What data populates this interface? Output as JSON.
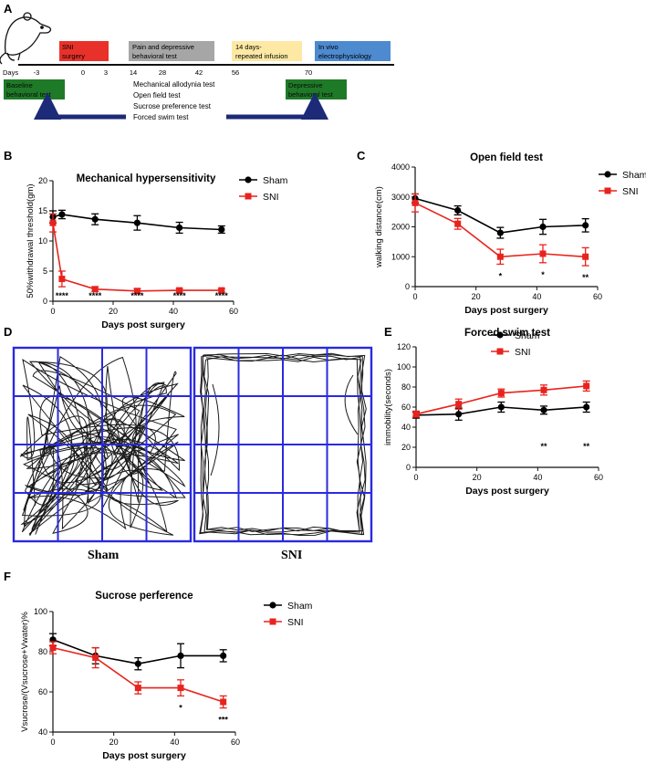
{
  "timeline": {
    "panel": "A",
    "days_label": "Days",
    "day_ticks": [
      {
        "label": "-3",
        "day": -3
      },
      {
        "label": "0",
        "day": 0
      },
      {
        "label": "3",
        "day": 3
      },
      {
        "label": "14",
        "day": 14
      },
      {
        "label": "28",
        "day": 28
      },
      {
        "label": "42",
        "day": 42
      },
      {
        "label": "56",
        "day": 56
      },
      {
        "label": "70",
        "day": 70
      }
    ],
    "boxes": [
      {
        "line1": "SNI",
        "line2": "surgery",
        "color": "#e8312a"
      },
      {
        "line1": "Pain and depressive",
        "line2": "behavioral test",
        "color": "#a6a6a6"
      },
      {
        "line1": "14 days-",
        "line2": "repeated infusion",
        "color": "#fde9a4"
      },
      {
        "line1": "In vivo",
        "line2": "electrophysiology",
        "color": "#4d8ad0"
      }
    ],
    "baseline": {
      "line1": "Baseline",
      "line2": "behavioral test",
      "color": "#1f7a28"
    },
    "depressive": {
      "line1": "Depressive",
      "line2": "behavioral test",
      "color": "#1f7a28"
    },
    "tests": [
      "Mechanical allodynia test",
      "Open field test",
      "Sucrose preference test",
      "Forced swim test"
    ]
  },
  "arena": {
    "panel": "D",
    "sham_label": "Sham",
    "sni_label": "SNI"
  },
  "chart_data": [
    {
      "panel": "B",
      "type": "line",
      "title": "Mechanical hypersensitivity",
      "xlabel": "Days post surgery",
      "ylabel": "50%withdrawal threshold(gm)",
      "xlim": [
        0,
        60
      ],
      "ylim": [
        0,
        20
      ],
      "xticks": [
        0,
        20,
        40,
        60
      ],
      "yticks": [
        0,
        5,
        10,
        15,
        20
      ],
      "legend_position": "top-right",
      "series": [
        {
          "name": "Sham",
          "color": "#000000",
          "x": [
            0,
            3,
            14,
            28,
            42,
            56
          ],
          "y": [
            14,
            14.4,
            13.6,
            13,
            12.2,
            11.9
          ],
          "err": [
            1,
            0.7,
            0.9,
            1.2,
            0.9,
            0.6
          ]
        },
        {
          "name": "SNI",
          "color": "#e8231d",
          "x": [
            0,
            3,
            14,
            28,
            42,
            56
          ],
          "y": [
            13,
            3.7,
            2,
            1.7,
            1.8,
            1.8
          ],
          "err": [
            1.5,
            1.3,
            0.4,
            0.4,
            0.3,
            0.3
          ]
        }
      ],
      "annotations": [
        {
          "x": 3,
          "text": "****"
        },
        {
          "x": 14,
          "text": "****"
        },
        {
          "x": 28,
          "text": "****"
        },
        {
          "x": 42,
          "text": "****"
        },
        {
          "x": 56,
          "text": "****"
        }
      ]
    },
    {
      "panel": "C",
      "type": "line",
      "title": "Open field test",
      "xlabel": "Days post surgery",
      "ylabel": "walking distance(cm)",
      "xlim": [
        0,
        60
      ],
      "ylim": [
        0,
        4000
      ],
      "xticks": [
        0,
        20,
        40,
        60
      ],
      "yticks": [
        0,
        1000,
        2000,
        3000,
        4000
      ],
      "legend_position": "top-right",
      "series": [
        {
          "name": "Sham",
          "color": "#000000",
          "x": [
            0,
            14,
            28,
            42,
            56
          ],
          "y": [
            2950,
            2550,
            1800,
            2000,
            2050
          ],
          "err": [
            150,
            150,
            180,
            250,
            220
          ]
        },
        {
          "name": "SNI",
          "color": "#e8231d",
          "x": [
            0,
            14,
            28,
            42,
            56
          ],
          "y": [
            2800,
            2100,
            1000,
            1100,
            1000
          ],
          "err": [
            300,
            180,
            250,
            300,
            300
          ]
        }
      ],
      "annotations": [
        {
          "x": 28,
          "text": "*"
        },
        {
          "x": 42,
          "text": "*"
        },
        {
          "x": 56,
          "text": "**"
        }
      ]
    },
    {
      "panel": "E",
      "type": "line",
      "title": "Forced swim test",
      "xlabel": "Days post surgery",
      "ylabel": "immobility(seconds)",
      "xlim": [
        0,
        60
      ],
      "ylim": [
        0,
        120
      ],
      "xticks": [
        0,
        20,
        40,
        60
      ],
      "yticks": [
        0,
        20,
        40,
        60,
        80,
        100,
        120
      ],
      "legend_position": "top-right",
      "series": [
        {
          "name": "Sham",
          "color": "#000000",
          "x": [
            0,
            14,
            28,
            42,
            56
          ],
          "y": [
            52,
            53,
            60,
            57,
            60
          ],
          "err": [
            3,
            6,
            5,
            4,
            5
          ]
        },
        {
          "name": "SNI",
          "color": "#e8231d",
          "x": [
            0,
            14,
            28,
            42,
            56
          ],
          "y": [
            53,
            63,
            74,
            77,
            81
          ],
          "err": [
            3,
            5,
            4,
            5,
            5
          ]
        }
      ],
      "annotations": [
        {
          "x": 42,
          "text": "**"
        },
        {
          "x": 56,
          "text": "**"
        }
      ]
    },
    {
      "panel": "F",
      "type": "line",
      "title": "Sucrose perference",
      "xlabel": "Days post surgery",
      "ylabel": "Vsucrose/(Vsucrose+Vwater)%",
      "xlim": [
        0,
        60
      ],
      "ylim": [
        40,
        100
      ],
      "xticks": [
        0,
        20,
        40,
        60
      ],
      "yticks": [
        40,
        60,
        80,
        100
      ],
      "legend_position": "top-right",
      "series": [
        {
          "name": "Sham",
          "color": "#000000",
          "x": [
            0,
            14,
            28,
            42,
            56
          ],
          "y": [
            86,
            78,
            74,
            78,
            78
          ],
          "err": [
            3,
            4,
            3,
            6,
            3
          ]
        },
        {
          "name": "SNI",
          "color": "#e8231d",
          "x": [
            0,
            14,
            28,
            42,
            56
          ],
          "y": [
            82,
            77,
            62,
            62,
            55
          ],
          "err": [
            3,
            5,
            3,
            4,
            3
          ]
        }
      ],
      "annotations": [
        {
          "x": 42,
          "text": "*"
        },
        {
          "x": 56,
          "text": "***"
        }
      ]
    }
  ]
}
